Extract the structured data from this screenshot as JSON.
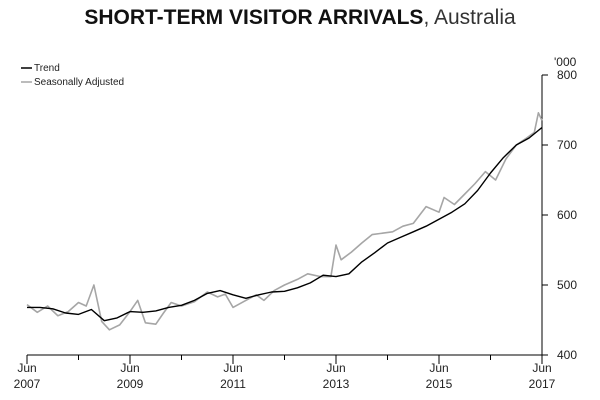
{
  "title": {
    "main": "SHORT-TERM VISITOR ARRIVALS",
    "sep": ",",
    "sub": "Australia"
  },
  "colors": {
    "trend": "#000000",
    "seasonal": "#a6a6a6",
    "axis": "#000000"
  },
  "chart_data": {
    "type": "line",
    "xlabel": "",
    "ylabel": "",
    "y_unit": "'000",
    "ylim": [
      400,
      800
    ],
    "yticks": [
      400,
      500,
      600,
      700,
      800
    ],
    "xlim": [
      2007.0,
      2017.0
    ],
    "xticks": [
      {
        "x": 2007,
        "top": "Jun",
        "bottom": "2007"
      },
      {
        "x": 2008,
        "top": "",
        "bottom": ""
      },
      {
        "x": 2009,
        "top": "Jun",
        "bottom": "2009"
      },
      {
        "x": 2010,
        "top": "",
        "bottom": ""
      },
      {
        "x": 2011,
        "top": "Jun",
        "bottom": "2011"
      },
      {
        "x": 2012,
        "top": "",
        "bottom": ""
      },
      {
        "x": 2013,
        "top": "Jun",
        "bottom": "2013"
      },
      {
        "x": 2014,
        "top": "",
        "bottom": ""
      },
      {
        "x": 2015,
        "top": "Jun",
        "bottom": "2015"
      },
      {
        "x": 2016,
        "top": "",
        "bottom": ""
      },
      {
        "x": 2017,
        "top": "Jun",
        "bottom": "2017"
      }
    ],
    "grid": false,
    "legend_position": "top-left",
    "series": [
      {
        "name": "Trend",
        "style": "line",
        "x": [
          2007.0,
          2007.25,
          2007.5,
          2007.75,
          2008.0,
          2008.25,
          2008.5,
          2008.75,
          2009.0,
          2009.25,
          2009.5,
          2009.75,
          2010.0,
          2010.25,
          2010.5,
          2010.75,
          2011.0,
          2011.25,
          2011.5,
          2011.75,
          2012.0,
          2012.25,
          2012.5,
          2012.75,
          2013.0,
          2013.25,
          2013.5,
          2013.75,
          2014.0,
          2014.25,
          2014.5,
          2014.75,
          2015.0,
          2015.25,
          2015.5,
          2015.75,
          2016.0,
          2016.25,
          2016.5,
          2016.75,
          2017.0
        ],
        "values": [
          468,
          468,
          466,
          460,
          458,
          465,
          449,
          453,
          462,
          461,
          463,
          468,
          471,
          478,
          488,
          492,
          486,
          481,
          486,
          490,
          491,
          496,
          503,
          514,
          512,
          516,
          533,
          546,
          560,
          568,
          576,
          584,
          594,
          604,
          616,
          635,
          660,
          682,
          700,
          710,
          725
        ]
      },
      {
        "name": "Seasonally Adjusted",
        "style": "line",
        "x": [
          2007.0,
          2007.2,
          2007.4,
          2007.6,
          2007.8,
          2008.0,
          2008.15,
          2008.3,
          2008.45,
          2008.6,
          2008.8,
          2009.0,
          2009.15,
          2009.3,
          2009.5,
          2009.65,
          2009.8,
          2010.0,
          2010.25,
          2010.5,
          2010.7,
          2010.85,
          2011.0,
          2011.2,
          2011.45,
          2011.6,
          2011.8,
          2012.0,
          2012.25,
          2012.45,
          2012.7,
          2012.9,
          2013.0,
          2013.1,
          2013.3,
          2013.5,
          2013.7,
          2013.9,
          2014.1,
          2014.3,
          2014.5,
          2014.75,
          2015.0,
          2015.1,
          2015.3,
          2015.5,
          2015.7,
          2015.9,
          2016.1,
          2016.3,
          2016.5,
          2016.7,
          2016.85,
          2016.93,
          2017.0
        ],
        "values": [
          472,
          461,
          470,
          456,
          462,
          475,
          470,
          500,
          448,
          436,
          443,
          462,
          478,
          446,
          444,
          460,
          475,
          470,
          476,
          490,
          483,
          487,
          468,
          476,
          486,
          478,
          492,
          500,
          508,
          516,
          512,
          512,
          557,
          536,
          547,
          560,
          572,
          574,
          576,
          584,
          588,
          612,
          604,
          625,
          615,
          630,
          645,
          662,
          650,
          680,
          700,
          710,
          718,
          746,
          735
        ]
      }
    ]
  }
}
